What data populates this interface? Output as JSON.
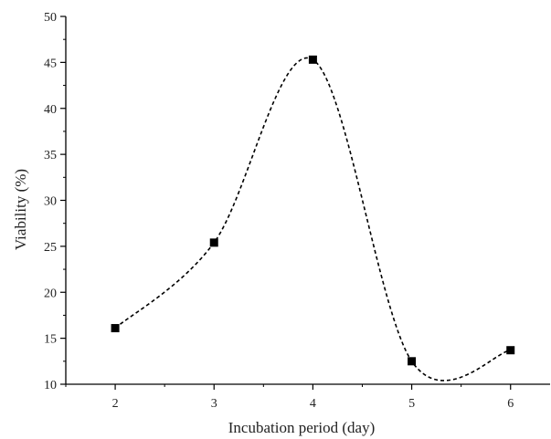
{
  "chart_data": {
    "type": "scatter",
    "title": "",
    "xlabel": "Incubation period (day)",
    "ylabel": "Viability  (%)",
    "x": [
      2,
      3,
      4,
      5,
      6
    ],
    "series": [
      {
        "values": [
          16.1,
          25.4,
          45.3,
          12.5,
          13.7
        ],
        "marker": "square",
        "line": "dashed smooth curve",
        "color": "#000000"
      }
    ],
    "xlim": [
      1.5,
      6.4
    ],
    "ylim": [
      10,
      50
    ],
    "xticks": [
      "2",
      "3",
      "4",
      "5",
      "6"
    ],
    "yticks": [
      "10",
      "15",
      "20",
      "25",
      "30",
      "35",
      "40",
      "45",
      "50"
    ],
    "grid": false,
    "legend": "none"
  }
}
